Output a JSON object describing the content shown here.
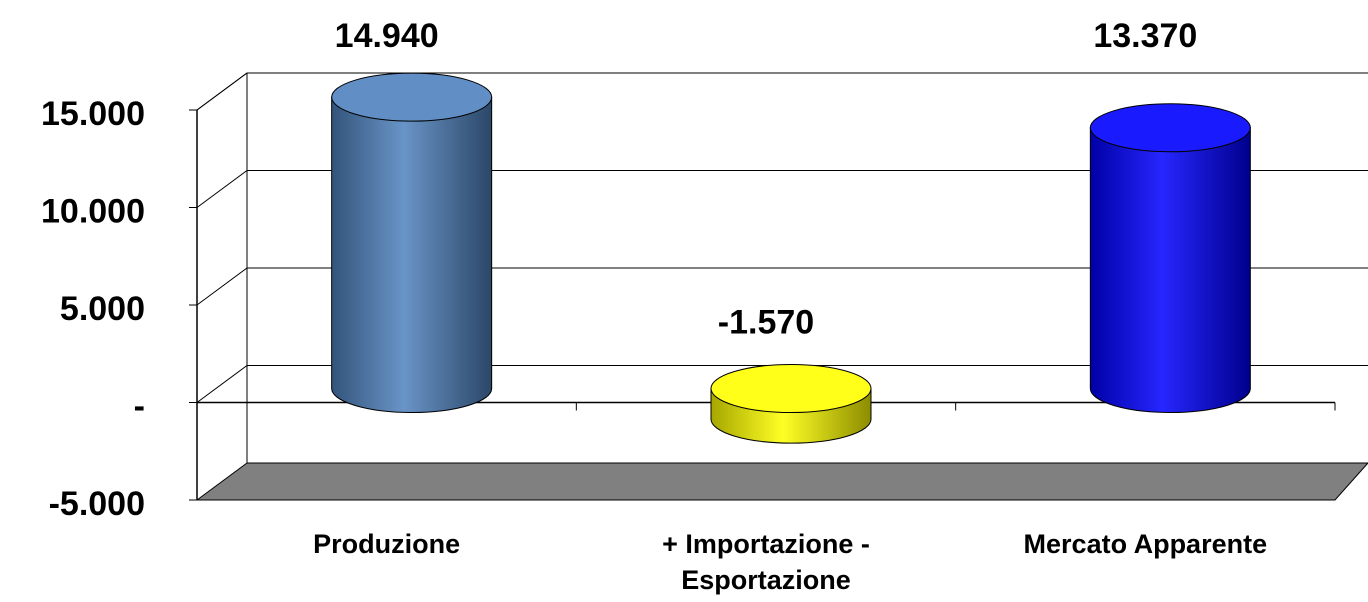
{
  "chart_data": {
    "type": "bar3d",
    "categories": [
      "Produzione",
      "+ Importazione - Esportazione",
      "Mercato Apparente"
    ],
    "values": [
      14940,
      -1570,
      13370
    ],
    "value_labels": [
      "14.940",
      "-1.570",
      "13.370"
    ],
    "colors": [
      "#4f81bd",
      "#ffff00",
      "#0000ff"
    ],
    "ylim": [
      -5000,
      15000
    ],
    "yticks": [
      {
        "value": -5000,
        "label": "-5.000"
      },
      {
        "value": 0,
        "label": "-"
      },
      {
        "value": 5000,
        "label": "5.000"
      },
      {
        "value": 10000,
        "label": "10.000"
      },
      {
        "value": 15000,
        "label": "15.000"
      }
    ],
    "grid": true
  }
}
